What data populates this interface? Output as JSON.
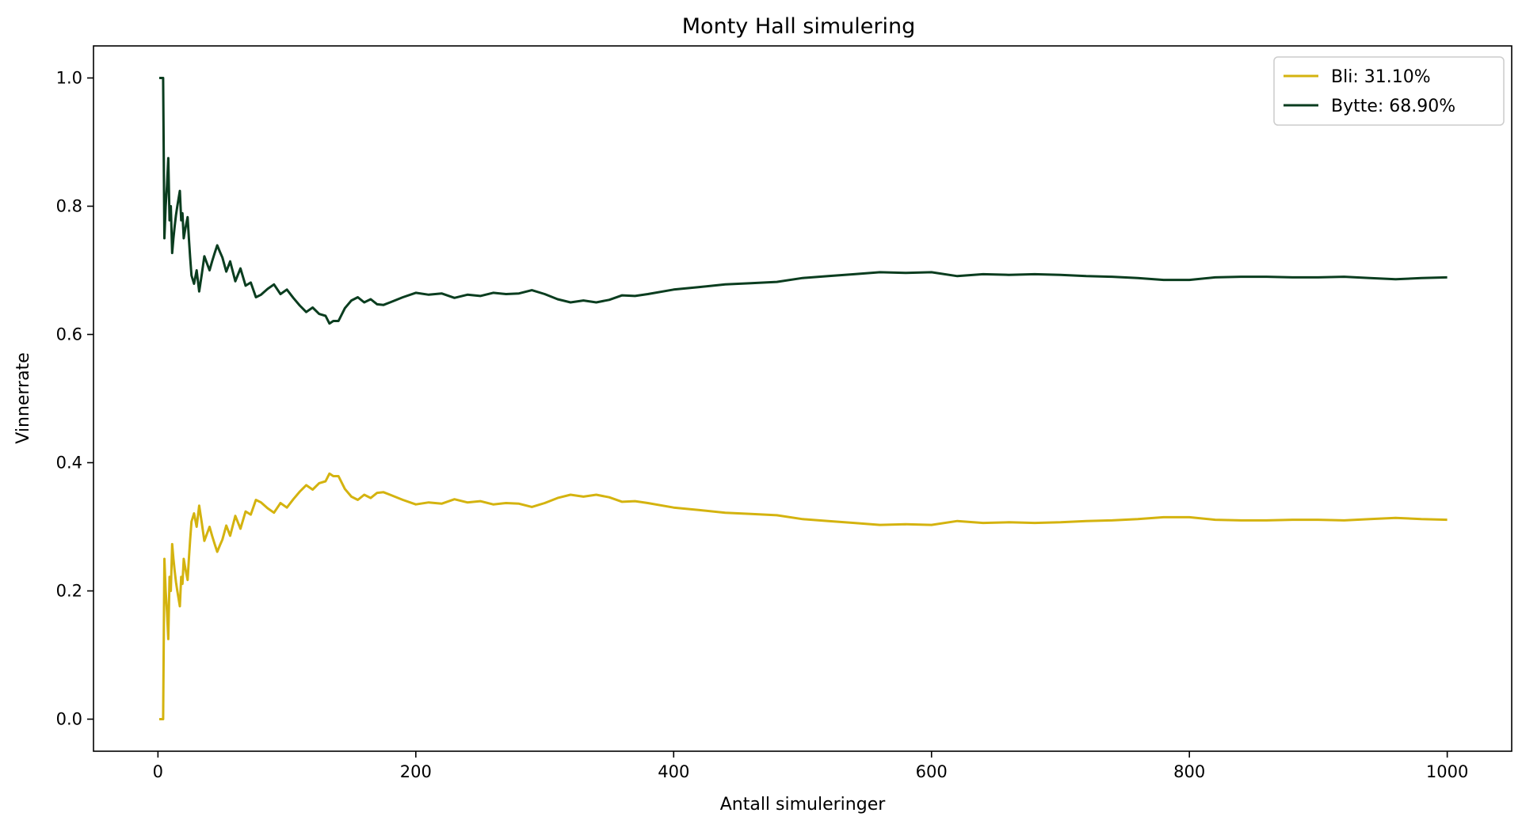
{
  "chart_data": {
    "type": "line",
    "title": "Monty Hall simulering",
    "xlabel": "Antall simuleringer",
    "ylabel": "Vinnerrate",
    "xlim": [
      -50,
      1050
    ],
    "ylim": [
      -0.05,
      1.05
    ],
    "x_ticks": [
      0,
      200,
      400,
      600,
      800,
      1000
    ],
    "y_ticks": [
      0.0,
      0.2,
      0.4,
      0.6,
      0.8,
      1.0
    ],
    "x_tick_labels": [
      "0",
      "200",
      "400",
      "600",
      "800",
      "1000"
    ],
    "y_tick_labels": [
      "0.0",
      "0.2",
      "0.4",
      "0.6",
      "0.8",
      "1.0"
    ],
    "grid": false,
    "legend_position": "top-right",
    "series": [
      {
        "name": "Bli: 31.10%",
        "color": "#d4b30f",
        "x": [
          1,
          2,
          3,
          4,
          5,
          6,
          7,
          8,
          9,
          10,
          11,
          12,
          13,
          14,
          15,
          16,
          17,
          18,
          19,
          20,
          21,
          22,
          23,
          24,
          25,
          26,
          28,
          30,
          32,
          34,
          36,
          38,
          40,
          42,
          44,
          46,
          48,
          50,
          53,
          56,
          60,
          64,
          68,
          72,
          76,
          80,
          85,
          90,
          95,
          100,
          105,
          110,
          115,
          120,
          125,
          130,
          133,
          136,
          140,
          145,
          150,
          155,
          160,
          165,
          170,
          175,
          180,
          190,
          200,
          210,
          220,
          230,
          240,
          250,
          260,
          270,
          280,
          290,
          300,
          310,
          320,
          330,
          340,
          350,
          360,
          370,
          380,
          400,
          420,
          440,
          460,
          480,
          500,
          520,
          540,
          560,
          580,
          600,
          620,
          640,
          660,
          680,
          700,
          720,
          740,
          760,
          780,
          800,
          820,
          840,
          860,
          880,
          900,
          920,
          940,
          960,
          980,
          1000
        ],
        "values": [
          0.0,
          0.0,
          0.0,
          0.0,
          0.25,
          0.2,
          0.167,
          0.125,
          0.222,
          0.2,
          0.273,
          0.25,
          0.231,
          0.214,
          0.2,
          0.188,
          0.176,
          0.222,
          0.211,
          0.25,
          0.238,
          0.227,
          0.217,
          0.25,
          0.28,
          0.308,
          0.321,
          0.3,
          0.333,
          0.306,
          0.278,
          0.289,
          0.3,
          0.286,
          0.273,
          0.261,
          0.271,
          0.28,
          0.302,
          0.286,
          0.317,
          0.297,
          0.324,
          0.319,
          0.342,
          0.338,
          0.329,
          0.322,
          0.337,
          0.33,
          0.343,
          0.355,
          0.365,
          0.358,
          0.368,
          0.371,
          0.383,
          0.379,
          0.379,
          0.359,
          0.347,
          0.342,
          0.35,
          0.345,
          0.353,
          0.354,
          0.35,
          0.342,
          0.335,
          0.338,
          0.336,
          0.343,
          0.338,
          0.34,
          0.335,
          0.337,
          0.336,
          0.331,
          0.337,
          0.345,
          0.35,
          0.347,
          0.35,
          0.346,
          0.339,
          0.34,
          0.337,
          0.33,
          0.326,
          0.322,
          0.32,
          0.318,
          0.312,
          0.309,
          0.306,
          0.303,
          0.304,
          0.303,
          0.309,
          0.306,
          0.307,
          0.306,
          0.307,
          0.309,
          0.31,
          0.312,
          0.315,
          0.315,
          0.311,
          0.31,
          0.31,
          0.311,
          0.311,
          0.31,
          0.312,
          0.314,
          0.312,
          0.311
        ]
      },
      {
        "name": "Bytte: 68.90%",
        "color": "#0a3d1f",
        "x": [
          1,
          2,
          3,
          4,
          5,
          6,
          7,
          8,
          9,
          10,
          11,
          12,
          13,
          14,
          15,
          16,
          17,
          18,
          19,
          20,
          21,
          22,
          23,
          24,
          25,
          26,
          28,
          30,
          32,
          34,
          36,
          38,
          40,
          42,
          44,
          46,
          48,
          50,
          53,
          56,
          60,
          64,
          68,
          72,
          76,
          80,
          85,
          90,
          95,
          100,
          105,
          110,
          115,
          120,
          125,
          130,
          133,
          136,
          140,
          145,
          150,
          155,
          160,
          165,
          170,
          175,
          180,
          190,
          200,
          210,
          220,
          230,
          240,
          250,
          260,
          270,
          280,
          290,
          300,
          310,
          320,
          330,
          340,
          350,
          360,
          370,
          380,
          400,
          420,
          440,
          460,
          480,
          500,
          520,
          540,
          560,
          580,
          600,
          620,
          640,
          660,
          680,
          700,
          720,
          740,
          760,
          780,
          800,
          820,
          840,
          860,
          880,
          900,
          920,
          940,
          960,
          980,
          1000
        ],
        "values": [
          1.0,
          1.0,
          1.0,
          1.0,
          0.75,
          0.8,
          0.833,
          0.875,
          0.778,
          0.8,
          0.727,
          0.75,
          0.769,
          0.786,
          0.8,
          0.812,
          0.824,
          0.778,
          0.789,
          0.75,
          0.762,
          0.773,
          0.783,
          0.75,
          0.72,
          0.692,
          0.679,
          0.7,
          0.667,
          0.694,
          0.722,
          0.711,
          0.7,
          0.714,
          0.727,
          0.739,
          0.729,
          0.72,
          0.698,
          0.714,
          0.683,
          0.703,
          0.676,
          0.681,
          0.658,
          0.662,
          0.671,
          0.678,
          0.663,
          0.67,
          0.657,
          0.645,
          0.635,
          0.642,
          0.632,
          0.629,
          0.617,
          0.621,
          0.621,
          0.641,
          0.653,
          0.658,
          0.65,
          0.655,
          0.647,
          0.646,
          0.65,
          0.658,
          0.665,
          0.662,
          0.664,
          0.657,
          0.662,
          0.66,
          0.665,
          0.663,
          0.664,
          0.669,
          0.663,
          0.655,
          0.65,
          0.653,
          0.65,
          0.654,
          0.661,
          0.66,
          0.663,
          0.67,
          0.674,
          0.678,
          0.68,
          0.682,
          0.688,
          0.691,
          0.694,
          0.697,
          0.696,
          0.697,
          0.691,
          0.694,
          0.693,
          0.694,
          0.693,
          0.691,
          0.69,
          0.688,
          0.685,
          0.685,
          0.689,
          0.69,
          0.69,
          0.689,
          0.689,
          0.69,
          0.688,
          0.686,
          0.688,
          0.689
        ]
      }
    ]
  }
}
